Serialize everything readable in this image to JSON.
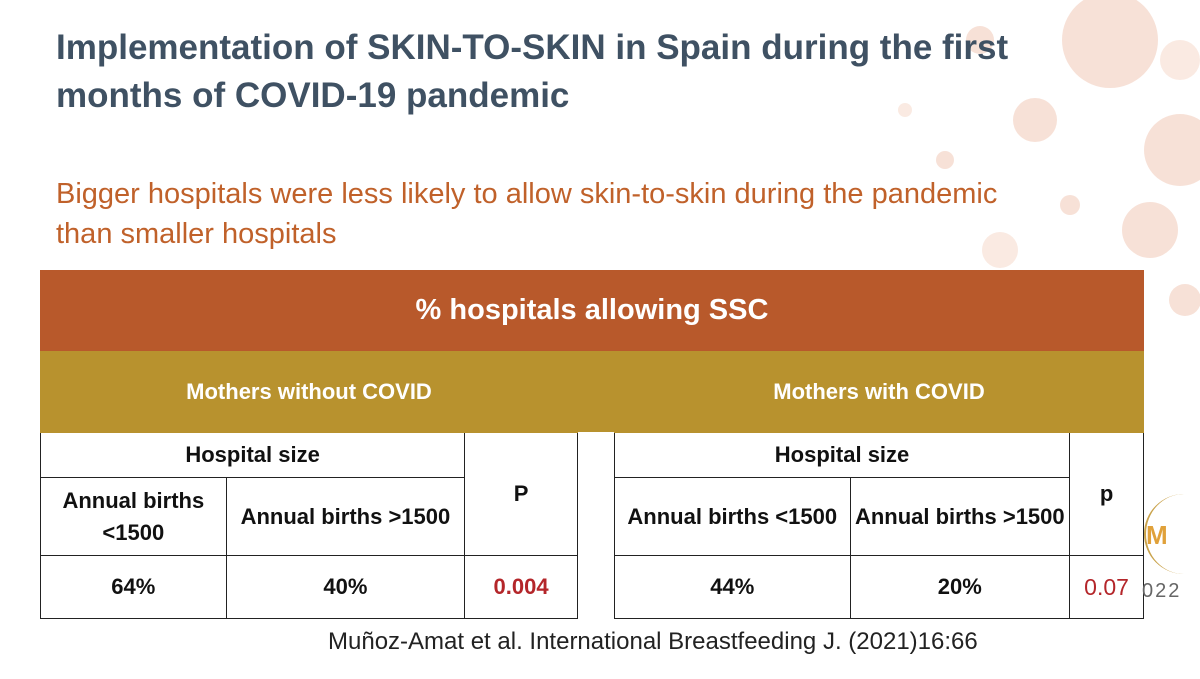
{
  "slide": {
    "title": "Implementation of SKIN-TO-SKIN in Spain during the first months of COVID-19 pandemic",
    "subtitle": "Bigger hospitals were less likely to allow skin-to-skin during the pandemic than smaller hospitals",
    "table_header": "% hospitals allowing SSC",
    "groups": [
      {
        "label": "Mothers without COVID",
        "size_label": "Hospital size",
        "col_small": "Annual births <1500",
        "col_large": "Annual births >1500",
        "p_label": "P",
        "value_small": "64%",
        "value_large": "40%",
        "p_value": "0.004"
      },
      {
        "label": "Mothers with COVID",
        "size_label": "Hospital size",
        "col_small": "Annual births <1500",
        "col_large": "Annual births >1500",
        "p_label": "p",
        "value_small": "44%",
        "value_large": "20%",
        "p_value": "0.07"
      }
    ],
    "citation": "Muñoz-Amat  et al. International Breastfeeding J. (2021)16:66",
    "logo_fragment": "M",
    "year_fragment": "022"
  },
  "colors": {
    "title": "#3f5163",
    "subtitle": "#c0612a",
    "header_band": "#b8592b",
    "group_band": "#b8922e",
    "p_value": "#b4262a"
  }
}
